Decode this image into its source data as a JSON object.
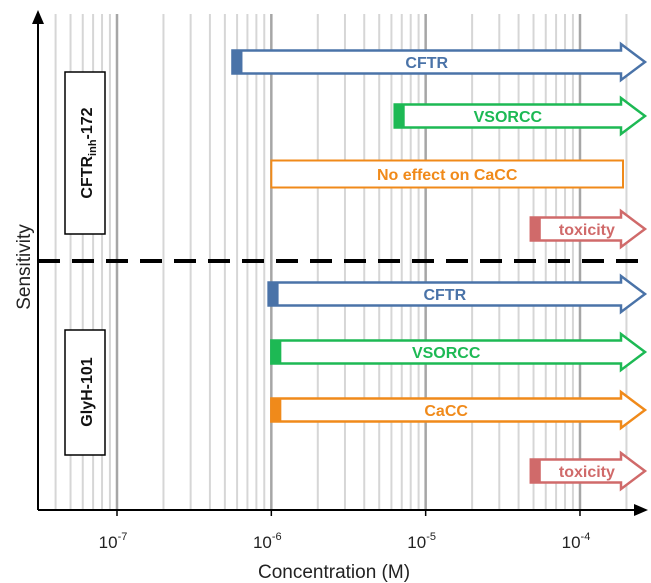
{
  "axes": {
    "x_title": "Concentration (M)",
    "y_title": "Sensitivity",
    "x_scale": "log",
    "x_range": [
      3e-08,
      0.00025
    ],
    "x_ticks": [
      {
        "value": 1e-07,
        "base": "10",
        "exp": "-7"
      },
      {
        "value": 1e-06,
        "base": "10",
        "exp": "-6"
      },
      {
        "value": 1e-05,
        "base": "10",
        "exp": "-5"
      },
      {
        "value": 0.0001,
        "base": "10",
        "exp": "-4"
      }
    ],
    "grid": "log minor lines per decade, major lines darker"
  },
  "groups": [
    {
      "label_main": "CFTR",
      "label_sub": "inh",
      "label_suffix": "-172",
      "bars": [
        {
          "label": "CFTR",
          "start": 5.6e-07,
          "color": "#4a73a8",
          "filled_start": true
        },
        {
          "label": "VSORCC",
          "start": 6.3e-06,
          "color": "#1db954",
          "filled_start": true
        },
        {
          "label": "No effect on CaCC",
          "start": 1e-06,
          "end": 0.00019,
          "color": "#f08a1a",
          "filled_start": false,
          "no_arrow": true
        },
        {
          "label": "toxicity",
          "start": 4.8e-05,
          "color": "#d06a6a",
          "filled_start": true
        }
      ]
    },
    {
      "label_main": "GlyH-101",
      "bars": [
        {
          "label": "CFTR",
          "start": 9.6e-07,
          "color": "#4a73a8",
          "filled_start": true
        },
        {
          "label": "VSORCC",
          "start": 1e-06,
          "color": "#1db954",
          "filled_start": true
        },
        {
          "label": "CaCC",
          "start": 1e-06,
          "color": "#f08a1a",
          "filled_start": true
        },
        {
          "label": "toxicity",
          "start": 4.8e-05,
          "color": "#d06a6a",
          "filled_start": true
        }
      ]
    }
  ]
}
